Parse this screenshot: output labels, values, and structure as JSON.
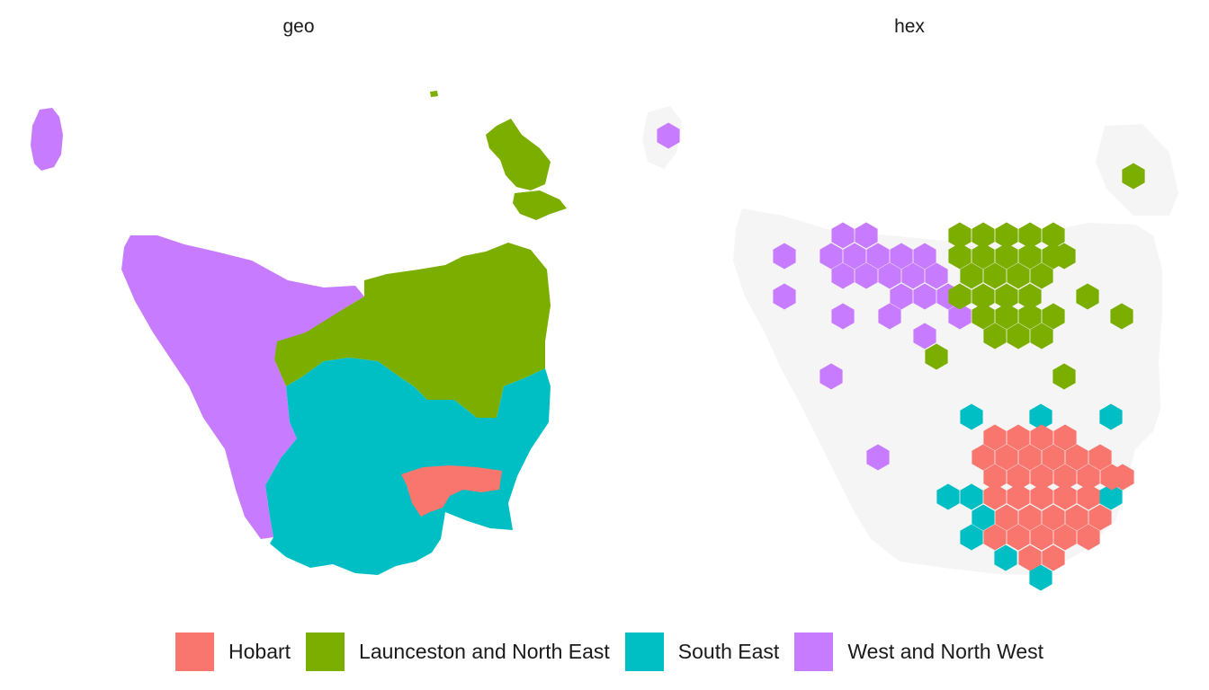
{
  "panels": [
    {
      "title": "geo"
    },
    {
      "title": "hex"
    }
  ],
  "legend": {
    "items": [
      {
        "label": "Hobart",
        "color": "#F8766D"
      },
      {
        "label": "Launceston and North East",
        "color": "#7CAE00"
      },
      {
        "label": "South East",
        "color": "#00BFC4"
      },
      {
        "label": "West and North West",
        "color": "#C77CFF"
      }
    ]
  },
  "colors": {
    "background_land": "#f5f5f5",
    "text": "#1a1a1a"
  }
}
